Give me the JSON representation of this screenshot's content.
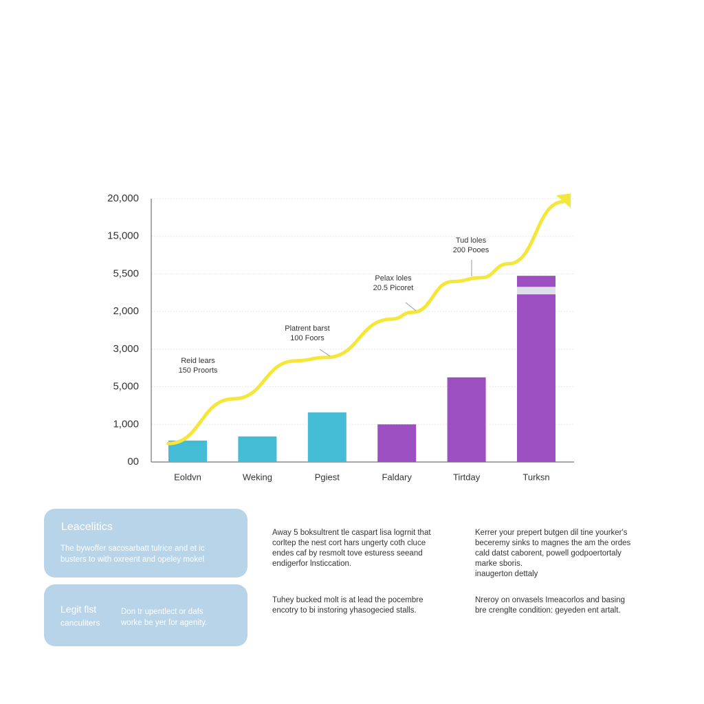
{
  "chart_data": {
    "type": "bar-line",
    "y_labels": [
      "00",
      "1,000",
      "5,000",
      "3,000",
      "2,000",
      "5,500",
      "15,000",
      "20,000"
    ],
    "ylim": [
      0,
      7
    ],
    "categories": [
      "Eoldvn",
      "Weking",
      "Pgiest",
      "Faldary",
      "Tirtday",
      "Turksn"
    ],
    "values": [
      0.57,
      0.68,
      1.32,
      1.0,
      2.25,
      4.95
    ],
    "colors": [
      "#45bcd6",
      "#45bcd6",
      "#45bcd6",
      "#9b4fc0",
      "#9b4fc0",
      "#9b4fc0"
    ],
    "highlight_color": "#dde0e6",
    "line": {
      "color": "#f5e63a",
      "x": [
        -0.28,
        0.66,
        1.55,
        1.99,
        2.93,
        3.22,
        3.81,
        4.21,
        4.6,
        5.39
      ],
      "values": [
        0.49,
        1.68,
        2.69,
        2.78,
        3.8,
        3.98,
        4.8,
        4.9,
        5.27,
        6.92
      ]
    },
    "annotations": [
      [
        "Reid lears",
        "150 Proorts"
      ],
      [
        "Platrent barst",
        "100 Foors"
      ],
      [
        "Pelax loles",
        "20.5 Picoret"
      ],
      [
        "Tud loles",
        "200 Pooes"
      ]
    ],
    "grid": true
  },
  "cards": [
    {
      "title": "Leacelitics",
      "body": [
        "The bywoffer sacosarbatt tulrice and et ic",
        "busters to with oxreent and opeley mokel"
      ]
    },
    {
      "title": [
        "Legit flst",
        "canculiters"
      ],
      "body": [
        "Don tr upentlect or dafs",
        "worke be yer for agenity."
      ]
    }
  ],
  "columns": [
    [
      [
        "Away 5 boksultrent tle caspart lisa logrnit that",
        "corltep the nest cort hars ungerty coth cluce",
        "endes caf by resmolt tove esturess seeand",
        "endigerfor lnsticcation."
      ],
      [
        "Tuhey bucked molt is at lead the pocembre",
        "encotry to bi instoring yhasogecied stalls."
      ]
    ],
    [
      [
        "Kerrer your prepert butgen dil tine yourker's",
        "beceremy sinks to magnes the am the ordes",
        "cald datst caborent, powell godpoertortaly",
        "marke sboris.",
        "inaugerton dettaly"
      ],
      [
        "Nreroy on onvasels Imeacorlos and basing",
        "bre crenglte condition: geyeden ent artalt."
      ]
    ]
  ]
}
